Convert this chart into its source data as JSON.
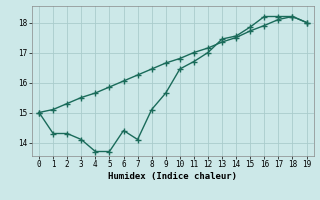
{
  "xlabel": "Humidex (Indice chaleur)",
  "background_color": "#cce8e8",
  "line_color": "#1a6b5a",
  "grid_color": "#aacccc",
  "x": [
    0,
    1,
    2,
    3,
    4,
    5,
    6,
    7,
    8,
    9,
    10,
    11,
    12,
    13,
    14,
    15,
    16,
    17,
    18,
    19
  ],
  "y_upper": [
    15.0,
    15.1,
    15.3,
    15.5,
    15.65,
    15.85,
    16.05,
    16.25,
    16.45,
    16.65,
    16.8,
    17.0,
    17.15,
    17.35,
    17.5,
    17.72,
    17.9,
    18.1,
    18.2,
    18.0
  ],
  "y_lower": [
    15.0,
    14.3,
    14.3,
    14.1,
    13.7,
    13.7,
    14.4,
    14.1,
    15.1,
    15.65,
    16.45,
    16.7,
    17.0,
    17.45,
    17.55,
    17.85,
    18.2,
    18.2,
    18.2,
    18.0
  ],
  "ylim": [
    13.55,
    18.55
  ],
  "yticks": [
    14,
    15,
    16,
    17,
    18
  ],
  "xticks": [
    0,
    1,
    2,
    3,
    4,
    5,
    6,
    7,
    8,
    9,
    10,
    11,
    12,
    13,
    14,
    15,
    16,
    17,
    18,
    19
  ],
  "marker": "+",
  "markersize": 4,
  "linewidth": 1.0
}
